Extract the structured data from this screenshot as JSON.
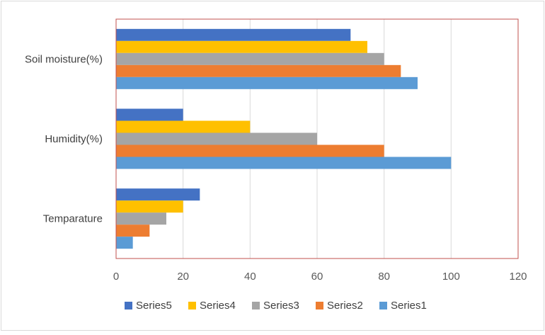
{
  "chart_data": {
    "type": "bar",
    "orientation": "horizontal",
    "title": "",
    "xlabel": "",
    "ylabel": "",
    "xlim": [
      0,
      120
    ],
    "x_ticks": [
      0,
      20,
      40,
      60,
      80,
      100,
      120
    ],
    "x_tick_labels": [
      "0",
      "20",
      "40",
      "60",
      "80",
      "100",
      "120"
    ],
    "grid": "vertical",
    "legend_position": "bottom",
    "categories": [
      "Soil moisture(%)",
      "Humidity(%)",
      "Temparature"
    ],
    "series": [
      {
        "name": "Series5",
        "color": "#4472C4",
        "values": [
          70,
          20,
          25
        ]
      },
      {
        "name": "Series4",
        "color": "#FFC000",
        "values": [
          75,
          40,
          20
        ]
      },
      {
        "name": "Series3",
        "color": "#A5A5A5",
        "values": [
          80,
          60,
          15
        ]
      },
      {
        "name": "Series2",
        "color": "#ED7D31",
        "values": [
          85,
          80,
          10
        ]
      },
      {
        "name": "Series1",
        "color": "#5B9BD5",
        "values": [
          90,
          100,
          5
        ]
      }
    ]
  }
}
